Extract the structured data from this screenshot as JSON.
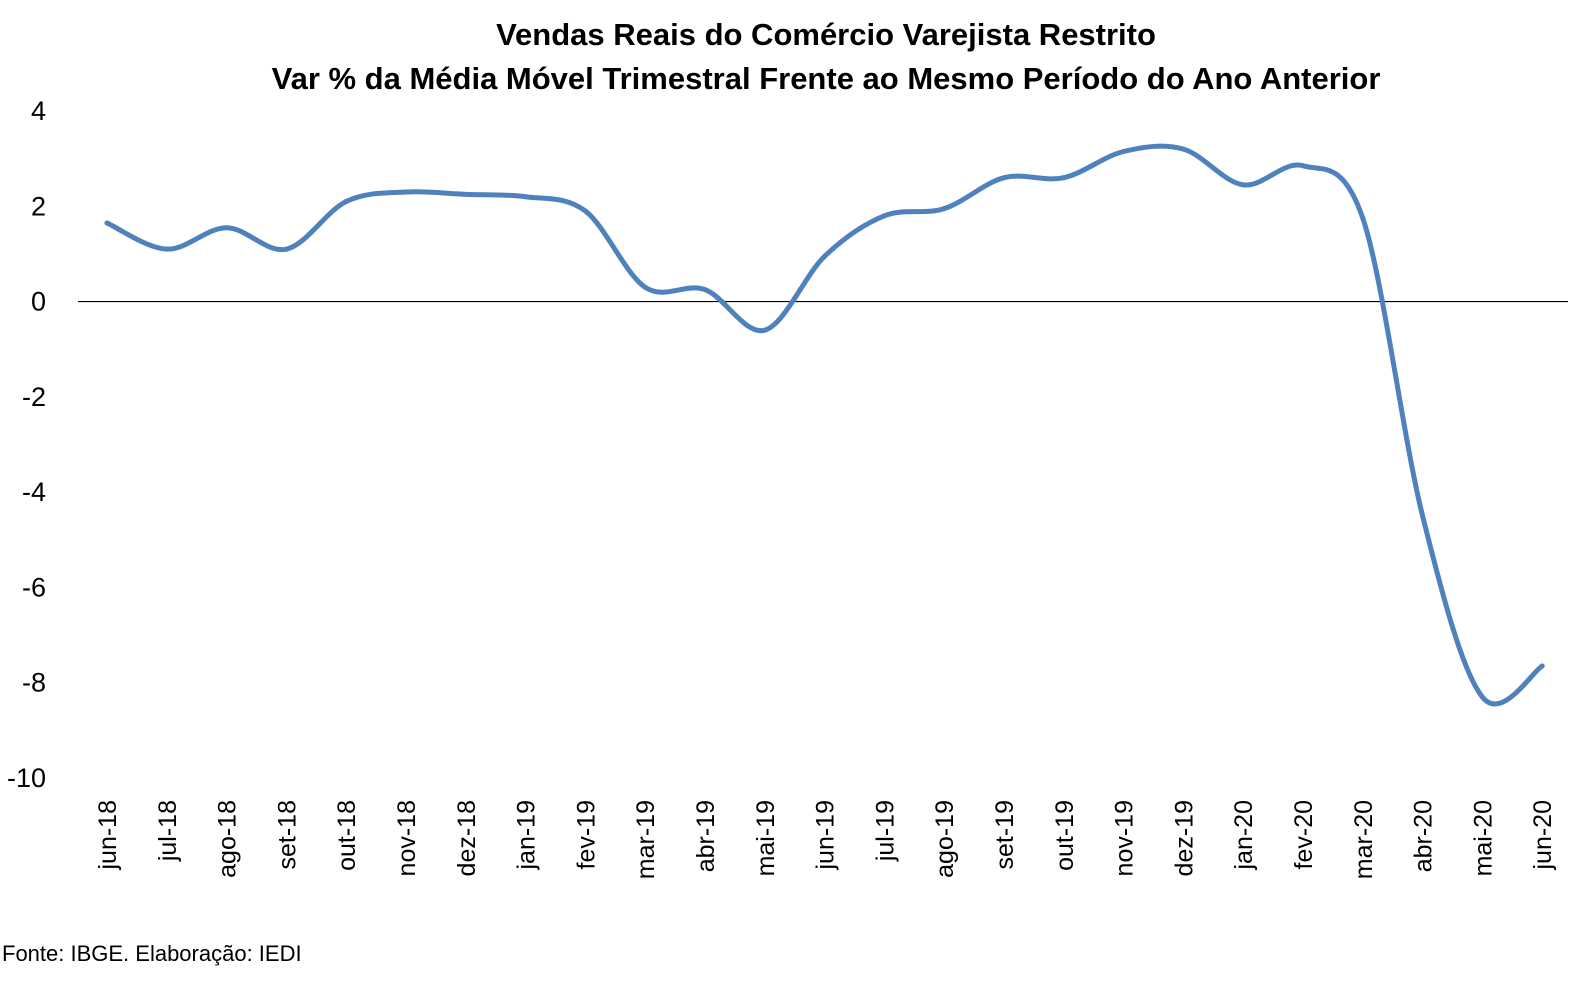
{
  "chart_data": {
    "type": "line",
    "title": "Vendas Reais do Comércio Varejista Restrito",
    "subtitle": "Var % da Média Móvel Trimestral Frente ao Mesmo Período do Ano Anterior",
    "xlabel": "",
    "ylabel": "",
    "ylim": [
      -10,
      4
    ],
    "yticks": [
      4,
      2,
      0,
      -2,
      -4,
      -6,
      -8,
      -10
    ],
    "ytick_labels": [
      "4",
      "2",
      "0",
      "-2",
      "-4",
      "-6",
      "-8",
      "-10"
    ],
    "grid": false,
    "legend": "none",
    "categories": [
      "jun-18",
      "jul-18",
      "ago-18",
      "set-18",
      "out-18",
      "nov-18",
      "dez-18",
      "jan-19",
      "fev-19",
      "mar-19",
      "abr-19",
      "mai-19",
      "jun-19",
      "jul-19",
      "ago-19",
      "set-19",
      "out-19",
      "nov-19",
      "dez-19",
      "jan-20",
      "fev-20",
      "mar-20",
      "abr-20",
      "mai-20",
      "jun-20"
    ],
    "series": [
      {
        "values": [
          1.65,
          1.1,
          1.55,
          1.1,
          2.1,
          2.3,
          2.25,
          2.2,
          1.9,
          0.3,
          0.25,
          -0.6,
          0.95,
          1.8,
          1.95,
          2.6,
          2.6,
          3.15,
          3.2,
          2.45,
          2.85,
          1.75,
          -4.5,
          -8.3,
          -7.65
        ],
        "color": "#4f81bd"
      }
    ],
    "colors": {
      "line": "#4f81bd",
      "zero_line": "#000000"
    }
  },
  "source_note": "Fonte: IBGE. Elaboração: IEDI"
}
